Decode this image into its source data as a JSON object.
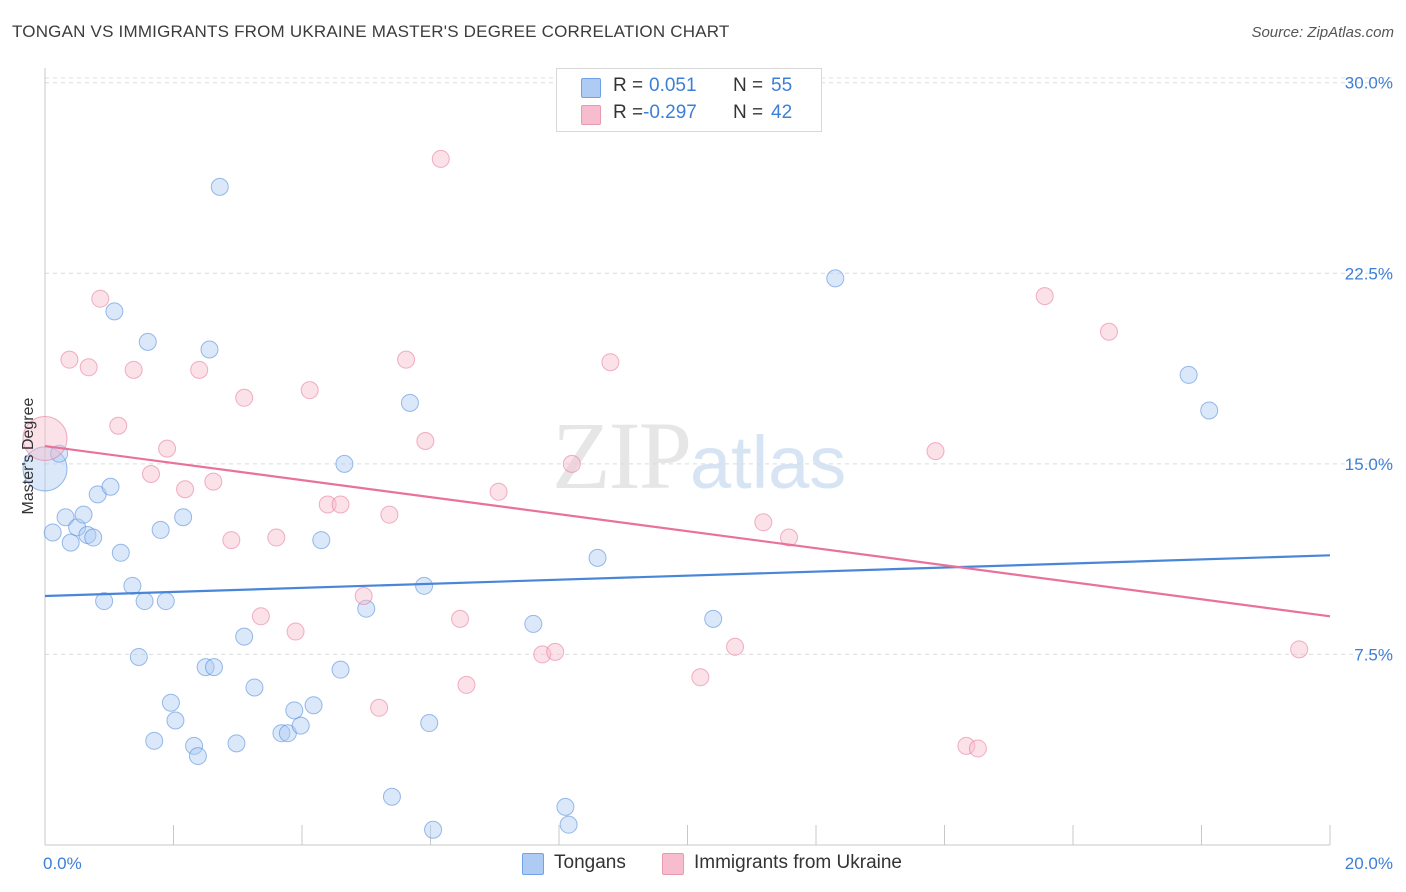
{
  "header": {
    "title": "TONGAN VS IMMIGRANTS FROM UKRAINE MASTER'S DEGREE CORRELATION CHART",
    "source": "Source: ZipAtlas.com"
  },
  "watermark": {
    "zip": "ZIP",
    "atlas": "atlas"
  },
  "stats": {
    "rows": [
      {
        "r_label": "R =",
        "r_value": "0.051",
        "n_label": "N =",
        "n_value": "55",
        "color": "#aecbf3"
      },
      {
        "r_label": "R =",
        "r_value": "-0.297",
        "n_label": "N =",
        "n_value": "42",
        "color": "#f7bccd"
      }
    ]
  },
  "legend": {
    "items": [
      {
        "label": "Tongans",
        "color": "#aecbf3"
      },
      {
        "label": "Immigrants from Ukraine",
        "color": "#f7bccd"
      }
    ]
  },
  "chart_data": {
    "type": "scatter",
    "title": "TONGAN VS IMMIGRANTS FROM UKRAINE MASTER'S DEGREE CORRELATION CHART",
    "xlabel": "",
    "ylabel": "Master's Degree",
    "xlim": [
      0,
      20
    ],
    "ylim": [
      0,
      30.5
    ],
    "x_tick_labels": [
      "0.0%",
      "20.0%"
    ],
    "y_ticks": [
      7.5,
      15.0,
      22.5,
      30.0
    ],
    "y_tick_labels": [
      "7.5%",
      "15.0%",
      "22.5%",
      "30.0%"
    ],
    "grid": "horizontal dashed",
    "legend_position": "bottom-center",
    "series": [
      {
        "name": "Tongans",
        "color": "#4a86d8",
        "fill": "#aecbf3",
        "trend": {
          "x": [
            0,
            20
          ],
          "y": [
            9.8,
            11.4
          ]
        },
        "points": [
          {
            "x": 0.0,
            "y": 14.8,
            "big": true
          },
          {
            "x": 0.12,
            "y": 12.3
          },
          {
            "x": 0.22,
            "y": 15.4
          },
          {
            "x": 0.32,
            "y": 12.9
          },
          {
            "x": 0.4,
            "y": 11.9
          },
          {
            "x": 0.5,
            "y": 12.5
          },
          {
            "x": 0.6,
            "y": 13.0
          },
          {
            "x": 0.66,
            "y": 12.2
          },
          {
            "x": 0.75,
            "y": 12.1
          },
          {
            "x": 0.82,
            "y": 13.8
          },
          {
            "x": 0.92,
            "y": 9.6
          },
          {
            "x": 1.02,
            "y": 14.1
          },
          {
            "x": 1.08,
            "y": 21.0
          },
          {
            "x": 1.18,
            "y": 11.5
          },
          {
            "x": 1.36,
            "y": 10.2
          },
          {
            "x": 1.46,
            "y": 7.4
          },
          {
            "x": 1.55,
            "y": 9.6
          },
          {
            "x": 1.6,
            "y": 19.8
          },
          {
            "x": 1.7,
            "y": 4.1
          },
          {
            "x": 1.8,
            "y": 12.4
          },
          {
            "x": 1.88,
            "y": 9.6
          },
          {
            "x": 1.96,
            "y": 5.6
          },
          {
            "x": 2.03,
            "y": 4.9
          },
          {
            "x": 2.15,
            "y": 12.9
          },
          {
            "x": 2.32,
            "y": 3.9
          },
          {
            "x": 2.38,
            "y": 3.5
          },
          {
            "x": 2.5,
            "y": 7.0
          },
          {
            "x": 2.56,
            "y": 19.5
          },
          {
            "x": 2.63,
            "y": 7.0
          },
          {
            "x": 2.72,
            "y": 25.9
          },
          {
            "x": 2.98,
            "y": 4.0
          },
          {
            "x": 3.1,
            "y": 8.2
          },
          {
            "x": 3.26,
            "y": 6.2
          },
          {
            "x": 3.68,
            "y": 4.4
          },
          {
            "x": 3.78,
            "y": 4.4
          },
          {
            "x": 3.88,
            "y": 5.3
          },
          {
            "x": 3.98,
            "y": 4.7
          },
          {
            "x": 4.18,
            "y": 5.5
          },
          {
            "x": 4.3,
            "y": 12.0
          },
          {
            "x": 4.6,
            "y": 6.9
          },
          {
            "x": 4.66,
            "y": 15.0
          },
          {
            "x": 5.0,
            "y": 9.3
          },
          {
            "x": 5.4,
            "y": 1.9
          },
          {
            "x": 5.68,
            "y": 17.4
          },
          {
            "x": 5.9,
            "y": 10.2
          },
          {
            "x": 5.98,
            "y": 4.8
          },
          {
            "x": 6.04,
            "y": 0.6
          },
          {
            "x": 7.6,
            "y": 8.7
          },
          {
            "x": 8.1,
            "y": 1.5
          },
          {
            "x": 8.15,
            "y": 0.8
          },
          {
            "x": 8.6,
            "y": 11.3
          },
          {
            "x": 10.4,
            "y": 8.9
          },
          {
            "x": 12.3,
            "y": 22.3
          },
          {
            "x": 17.8,
            "y": 18.5
          },
          {
            "x": 18.12,
            "y": 17.1
          }
        ]
      },
      {
        "name": "Immigrants from Ukraine",
        "color": "#e8729a",
        "fill": "#f7bccd",
        "trend": {
          "x": [
            0,
            20
          ],
          "y": [
            15.7,
            9.0
          ]
        },
        "points": [
          {
            "x": 0.0,
            "y": 16.0,
            "big": true
          },
          {
            "x": 0.38,
            "y": 19.1
          },
          {
            "x": 0.68,
            "y": 18.8
          },
          {
            "x": 0.86,
            "y": 21.5
          },
          {
            "x": 1.14,
            "y": 16.5
          },
          {
            "x": 1.38,
            "y": 18.7
          },
          {
            "x": 1.65,
            "y": 14.6
          },
          {
            "x": 1.9,
            "y": 15.6
          },
          {
            "x": 2.18,
            "y": 14.0
          },
          {
            "x": 2.4,
            "y": 18.7
          },
          {
            "x": 2.62,
            "y": 14.3
          },
          {
            "x": 2.9,
            "y": 12.0
          },
          {
            "x": 3.1,
            "y": 17.6
          },
          {
            "x": 3.36,
            "y": 9.0
          },
          {
            "x": 3.6,
            "y": 12.1
          },
          {
            "x": 3.9,
            "y": 8.4
          },
          {
            "x": 4.12,
            "y": 17.9
          },
          {
            "x": 4.4,
            "y": 13.4
          },
          {
            "x": 4.6,
            "y": 13.4
          },
          {
            "x": 4.96,
            "y": 9.8
          },
          {
            "x": 5.2,
            "y": 5.4
          },
          {
            "x": 5.36,
            "y": 13.0
          },
          {
            "x": 5.62,
            "y": 19.1
          },
          {
            "x": 5.92,
            "y": 15.9
          },
          {
            "x": 6.16,
            "y": 27.0
          },
          {
            "x": 6.46,
            "y": 8.9
          },
          {
            "x": 6.56,
            "y": 6.3
          },
          {
            "x": 7.06,
            "y": 13.9
          },
          {
            "x": 7.74,
            "y": 7.5
          },
          {
            "x": 7.94,
            "y": 7.6
          },
          {
            "x": 8.2,
            "y": 15.0
          },
          {
            "x": 8.8,
            "y": 19.0
          },
          {
            "x": 10.2,
            "y": 6.6
          },
          {
            "x": 10.74,
            "y": 7.8
          },
          {
            "x": 11.18,
            "y": 12.7
          },
          {
            "x": 11.58,
            "y": 12.1
          },
          {
            "x": 13.86,
            "y": 15.5
          },
          {
            "x": 14.34,
            "y": 3.9
          },
          {
            "x": 14.52,
            "y": 3.8
          },
          {
            "x": 15.56,
            "y": 21.6
          },
          {
            "x": 16.56,
            "y": 20.2
          },
          {
            "x": 19.52,
            "y": 7.7
          }
        ]
      }
    ]
  }
}
